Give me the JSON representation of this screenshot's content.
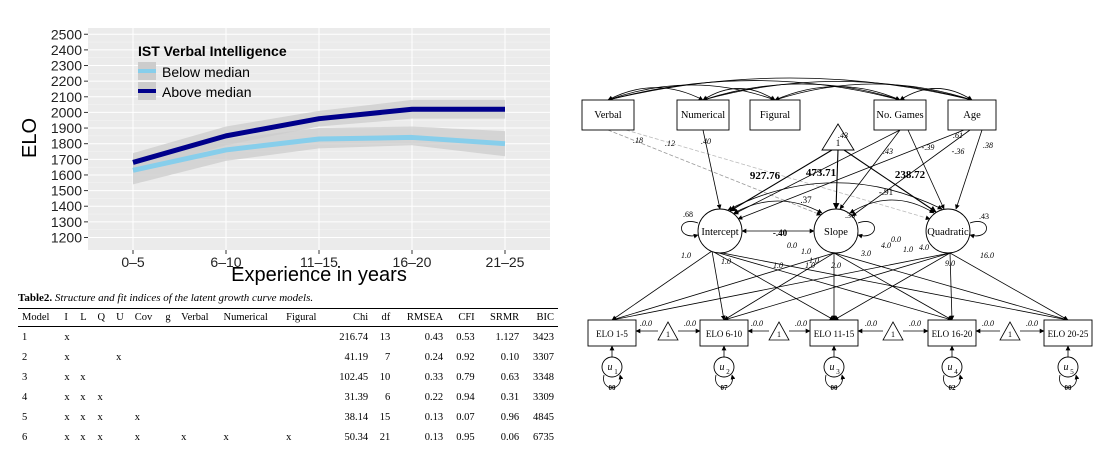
{
  "chart_data": {
    "type": "line",
    "title": "IST Verbal Intelligence",
    "xlabel": "Experience in years",
    "ylabel": "ELO",
    "categories": [
      "0–5",
      "6–10",
      "11–15",
      "16–20",
      "21–25"
    ],
    "yticks": [
      1200,
      1300,
      1400,
      1500,
      1600,
      1700,
      1800,
      1900,
      2000,
      2100,
      2200,
      2300,
      2400,
      2500
    ],
    "ylim": [
      1120,
      2540
    ],
    "grid": true,
    "legend_position": "top-left",
    "series": [
      {
        "name": "Below median",
        "color": "#87ceeb",
        "values": [
          1630,
          1760,
          1830,
          1840,
          1800
        ],
        "lower": [
          1540,
          1690,
          1770,
          1790,
          1720
        ],
        "upper": [
          1700,
          1830,
          1900,
          1910,
          1880
        ]
      },
      {
        "name": "Above median",
        "color": "#00008b",
        "values": [
          1680,
          1850,
          1960,
          2020,
          2020
        ],
        "lower": [
          1620,
          1790,
          1910,
          1960,
          1960
        ],
        "upper": [
          1740,
          1910,
          2010,
          2080,
          2080
        ]
      }
    ],
    "band_color": "#cccccc",
    "background": "#ebebeb"
  },
  "table": {
    "caption_label": "Table2.",
    "caption_text": "Structure and fit indices of the latent growth curve models.",
    "columns": [
      "Model",
      "I",
      "L",
      "Q",
      "U",
      "Cov",
      "g",
      "Verbal",
      "Numerical",
      "Figural",
      "Chi",
      "df",
      "RMSEA",
      "CFI",
      "SRMR",
      "BIC"
    ],
    "rows": [
      [
        "1",
        "x",
        "",
        "",
        "",
        "",
        "",
        "",
        "",
        "",
        "216.74",
        "13",
        "0.43",
        "0.53",
        "1.127",
        "3423"
      ],
      [
        "2",
        "x",
        "",
        "",
        "x",
        "",
        "",
        "",
        "",
        "",
        "41.19",
        "7",
        "0.24",
        "0.92",
        "0.10",
        "3307"
      ],
      [
        "3",
        "x",
        "x",
        "",
        "",
        "",
        "",
        "",
        "",
        "",
        "102.45",
        "10",
        "0.33",
        "0.79",
        "0.63",
        "3348"
      ],
      [
        "4",
        "x",
        "x",
        "x",
        "",
        "",
        "",
        "",
        "",
        "",
        "31.39",
        "6",
        "0.22",
        "0.94",
        "0.31",
        "3309"
      ],
      [
        "5",
        "x",
        "x",
        "x",
        "",
        "x",
        "",
        "",
        "",
        "",
        "38.14",
        "15",
        "0.13",
        "0.07",
        "0.96",
        "4845"
      ],
      [
        "6",
        "x",
        "x",
        "x",
        "",
        "x",
        "",
        "x",
        "x",
        "x",
        "50.34",
        "21",
        "0.13",
        "0.95",
        "0.06",
        "6735"
      ]
    ]
  },
  "sem": {
    "predictors": [
      "Verbal",
      "Numerical",
      "Figural",
      "No. Games",
      "Age"
    ],
    "constant": "1",
    "factors": [
      "Intercept",
      "Slope",
      "Quadratic"
    ],
    "factor_variances": [
      ".68",
      ".36",
      ".43"
    ],
    "observed": [
      "ELO 1-5",
      "ELO 6-10",
      "ELO 11-15",
      "ELO 16-20",
      "ELO 20-25"
    ],
    "residuals": [
      "u",
      "u",
      "u",
      "u",
      "u"
    ],
    "residual_subs": [
      "1",
      "2",
      "3",
      "4",
      "5"
    ],
    "residual_vars": [
      "00",
      "07",
      "00",
      "02",
      "00"
    ],
    "means": [
      "927.76",
      "473.71",
      "238.72"
    ],
    "factor_covs": [
      ".37",
      "-.91",
      "-.40"
    ],
    "predictor_paths": [
      ".18",
      ".12",
      ".40",
      ".43",
      ".43",
      "-.39",
      ".61",
      "-.36",
      ".38"
    ],
    "zero_labels": [
      ".0.0",
      ".0.0",
      ".0.0",
      ".0.0",
      ".0.0",
      ".0.0",
      ".0.0",
      ".0.0"
    ],
    "intercept_loadings": [
      "1.0",
      "1.0",
      "1.0",
      "1.0",
      "1.0"
    ],
    "slope_loadings": [
      "0.0",
      "1.0",
      "2.0",
      "3.0",
      "4.0"
    ],
    "quad_loadings": [
      "0.0",
      "1.0",
      "4.0",
      "9.0",
      "16.0"
    ]
  }
}
